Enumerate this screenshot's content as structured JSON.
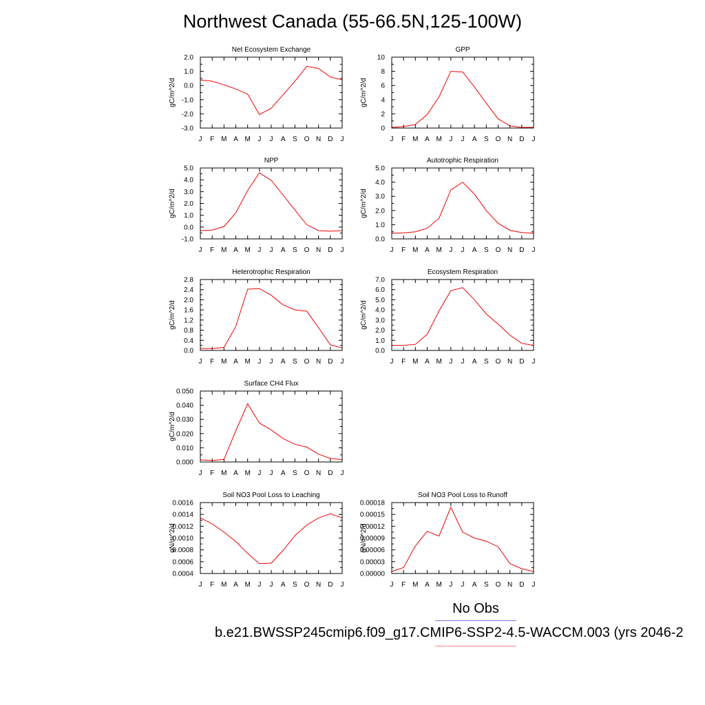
{
  "title": "Northwest Canada (55-66.5N,125-100W)",
  "months": [
    "J",
    "F",
    "M",
    "A",
    "M",
    "J",
    "J",
    "A",
    "S",
    "O",
    "N",
    "D",
    "J"
  ],
  "legend": {
    "obs_label": "No Obs",
    "obs_color": "#7777ee",
    "model_label": "b.e21.BWSSP245cmip6.f09_g17.CMIP6-SSP2-4.5-WACCM.003 (yrs 2046-2",
    "model_color": "#ff8888"
  },
  "line_color": "#ee0000",
  "chart_data": [
    {
      "type": "line",
      "title": "Net Ecosystem Exchange",
      "ylabel": "gC/m^2/d",
      "ylim": [
        -3.0,
        2.0
      ],
      "yticks": [
        "-3.0",
        "-2.0",
        "-1.0",
        "0.0",
        "1.0",
        "2.0"
      ],
      "series": [
        {
          "values": [
            0.4,
            0.3,
            0.05,
            -0.25,
            -0.6,
            -2.05,
            -1.6,
            -0.65,
            0.3,
            1.35,
            1.2,
            0.6,
            0.4
          ]
        }
      ]
    },
    {
      "type": "line",
      "title": "GPP",
      "ylabel": "gC/m^2/d",
      "ylim": [
        0,
        10
      ],
      "yticks": [
        "0",
        "2",
        "4",
        "6",
        "8",
        "10"
      ],
      "series": [
        {
          "values": [
            0.1,
            0.2,
            0.5,
            1.9,
            4.4,
            8.0,
            7.9,
            5.8,
            3.5,
            1.3,
            0.3,
            0.1,
            0.1
          ]
        }
      ]
    },
    {
      "type": "line",
      "title": "NPP",
      "ylabel": "gC/m^2/d",
      "ylim": [
        -1.0,
        5.0
      ],
      "yticks": [
        "-1.0",
        "0.0",
        "1.0",
        "2.0",
        "3.0",
        "4.0",
        "5.0"
      ],
      "series": [
        {
          "values": [
            -0.3,
            -0.25,
            0.05,
            1.2,
            3.1,
            4.6,
            3.95,
            2.7,
            1.45,
            0.2,
            -0.3,
            -0.35,
            -0.3
          ]
        }
      ]
    },
    {
      "type": "line",
      "title": "Autotrophic Respiration",
      "ylabel": "gC/m^2/d",
      "ylim": [
        0.0,
        5.0
      ],
      "yticks": [
        "0.0",
        "1.0",
        "2.0",
        "3.0",
        "4.0",
        "5.0"
      ],
      "series": [
        {
          "values": [
            0.4,
            0.42,
            0.5,
            0.75,
            1.45,
            3.45,
            4.0,
            3.15,
            2.0,
            1.1,
            0.6,
            0.45,
            0.4
          ]
        }
      ]
    },
    {
      "type": "line",
      "title": "Heterotrophic Respiration",
      "ylabel": "gC/m^2/d",
      "ylim": [
        0.0,
        2.8
      ],
      "yticks": [
        "0.0",
        "0.4",
        "0.8",
        "1.2",
        "1.6",
        "2.0",
        "2.4",
        "2.8"
      ],
      "series": [
        {
          "values": [
            0.08,
            0.07,
            0.12,
            0.95,
            2.42,
            2.44,
            2.18,
            1.8,
            1.6,
            1.55,
            0.9,
            0.22,
            0.1
          ]
        }
      ]
    },
    {
      "type": "line",
      "title": "Ecosystem Respiration",
      "ylabel": "gC/m^2/d",
      "ylim": [
        0.0,
        7.0
      ],
      "yticks": [
        "0.0",
        "1.0",
        "2.0",
        "3.0",
        "4.0",
        "5.0",
        "6.0",
        "7.0"
      ],
      "series": [
        {
          "values": [
            0.5,
            0.5,
            0.6,
            1.6,
            3.9,
            5.9,
            6.2,
            5.0,
            3.6,
            2.6,
            1.5,
            0.7,
            0.5
          ]
        }
      ]
    },
    {
      "type": "line",
      "title": "Surface CH4 Flux",
      "ylabel": "gC/m^2/d",
      "ylim": [
        0.0,
        0.05
      ],
      "yticks": [
        "0.000",
        "0.010",
        "0.020",
        "0.030",
        "0.040",
        "0.050"
      ],
      "series": [
        {
          "values": [
            0.0015,
            0.001,
            0.0018,
            0.022,
            0.041,
            0.0275,
            0.0225,
            0.0165,
            0.0125,
            0.0105,
            0.0055,
            0.0025,
            0.0017
          ]
        }
      ]
    },
    {
      "type": "line",
      "title": "Soil NO3 Pool Loss to Leaching",
      "ylabel": "gN/m^2/d",
      "ylim": [
        0.0004,
        0.0016
      ],
      "yticks": [
        "0.0004",
        "0.0006",
        "0.0008",
        "0.0010",
        "0.0012",
        "0.0014",
        "0.0016"
      ],
      "series": [
        {
          "values": [
            0.00134,
            0.00124,
            0.0011,
            0.00094,
            0.00074,
            0.000565,
            0.000575,
            0.00079,
            0.00104,
            0.00122,
            0.00134,
            0.00141,
            0.00134
          ]
        }
      ]
    },
    {
      "type": "line",
      "title": "Soil NO3 Pool Loss to Runoff",
      "ylabel": "gN/m^2/d",
      "ylim": [
        0.0,
        0.00018
      ],
      "yticks": [
        "0.00000",
        "0.00003",
        "0.00006",
        "0.00009",
        "0.00012",
        "0.00015",
        "0.00018"
      ],
      "series": [
        {
          "values": [
            5e-06,
            1.5e-05,
            7e-05,
            0.000107,
            9.5e-05,
            0.000168,
            0.000105,
            9e-05,
            8.2e-05,
            6.8e-05,
            2.5e-05,
            1.2e-05,
            5e-06
          ]
        }
      ]
    }
  ]
}
